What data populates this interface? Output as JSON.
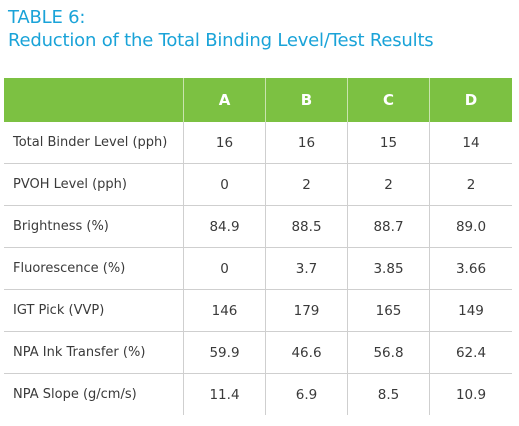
{
  "table_label": "TABLE 6:",
  "table_title": "Reduction of the Total Binding Level/Test Results",
  "header": [
    "",
    "A",
    "B",
    "C",
    "D"
  ],
  "rows": [
    [
      "Total Binder Level (pph)",
      "16",
      "16",
      "15",
      "14"
    ],
    [
      "PVOH Level (pph)",
      "0",
      "2",
      "2",
      "2"
    ],
    [
      "Brightness (%)",
      "84.9",
      "88.5",
      "88.7",
      "89.0"
    ],
    [
      "Fluorescence (%)",
      "0",
      "3.7",
      "3.85",
      "3.66"
    ],
    [
      "IGT Pick (VVP)",
      "146",
      "179",
      "165",
      "149"
    ],
    [
      "NPA Ink Transfer (%)",
      "59.9",
      "46.6",
      "56.8",
      "62.4"
    ],
    [
      "NPA Slope (g/cm/s)",
      "11.4",
      "6.9",
      "8.5",
      "10.9"
    ]
  ],
  "colors": {
    "heading": "#1aa3d8",
    "header_bg": "#7cc142",
    "header_text": "#ffffff",
    "cell_text": "#3a3a3a",
    "grid": "#cfcfcf"
  }
}
